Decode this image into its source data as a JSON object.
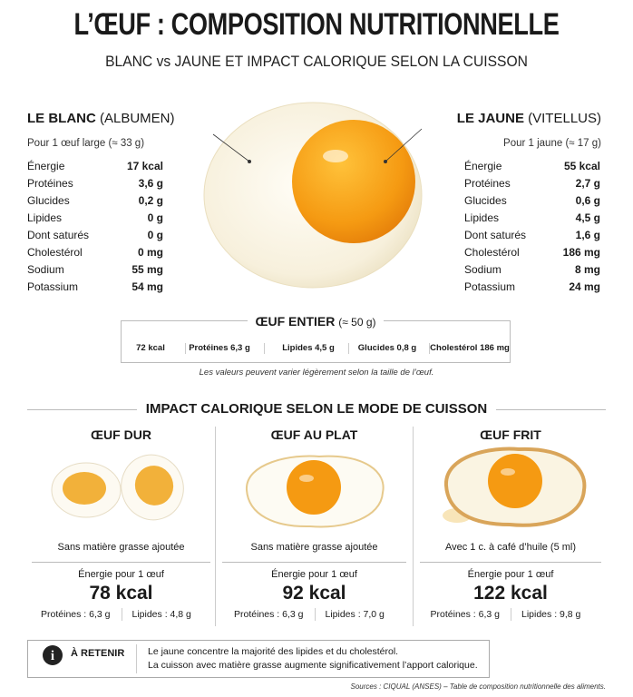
{
  "header": {
    "title": "L’ŒUF : COMPOSITION NUTRITIONNELLE",
    "subtitle": "BLANC vs JAUNE ET IMPACT CALORIQUE SELON LA CUISSON"
  },
  "white": {
    "title": "LE BLANC",
    "title_note": "(ALBUMEN)",
    "portion": "Pour 1 œuf large (≈ 33 g)",
    "rows": [
      [
        "Énergie",
        "17 kcal"
      ],
      [
        "Protéines",
        "3,6 g"
      ],
      [
        "Glucides",
        "0,2 g"
      ],
      [
        "Lipides",
        "0 g"
      ],
      [
        "Dont saturés",
        "0 g"
      ],
      [
        "Cholestérol",
        "0 mg"
      ],
      [
        "Sodium",
        "55 mg"
      ],
      [
        "Potassium",
        "54 mg"
      ]
    ]
  },
  "yolk": {
    "title": "LE JAUNE",
    "title_note": "(VITELLUS)",
    "portion": "Pour 1 jaune (≈ 17 g)",
    "rows": [
      [
        "Énergie",
        "55 kcal"
      ],
      [
        "Protéines",
        "2,7 g"
      ],
      [
        "Glucides",
        "0,6 g"
      ],
      [
        "Lipides",
        "4,5 g"
      ],
      [
        "Dont saturés",
        "1,6 g"
      ],
      [
        "Cholestérol",
        "186 mg"
      ],
      [
        "Sodium",
        "8 mg"
      ],
      [
        "Potassium",
        "24 mg"
      ]
    ]
  },
  "whole": {
    "title": "ŒUF ENTIER",
    "title_note": "(≈ 50 g)",
    "items": [
      "72 kcal",
      "Protéines 6,3 g",
      "Lipides 4,5 g",
      "Glucides 0,8 g",
      "Cholestérol 186 mg"
    ]
  },
  "note": "Les valeurs peuvent varier légèrement selon la taille de l’œuf.",
  "cooking": {
    "title": "IMPACT CALORIQUE SELON LE MODE DE CUISSON",
    "methods": [
      {
        "name": "ŒUF DUR",
        "fat": "Sans matière grasse ajoutée",
        "energy_label": "Énergie pour 1 œuf",
        "energy": "78 kcal",
        "proteins": "Protéines : 6,3 g",
        "lipids": "Lipides : 4,8 g"
      },
      {
        "name": "ŒUF AU PLAT",
        "fat": "Sans matière grasse ajoutée",
        "energy_label": "Énergie pour 1 œuf",
        "energy": "92 kcal",
        "proteins": "Protéines : 6,3 g",
        "lipids": "Lipides : 7,0 g"
      },
      {
        "name": "ŒUF FRIT",
        "fat": "Avec 1 c. à café d’huile (5 ml)",
        "energy_label": "Énergie pour 1 œuf",
        "energy": "122 kcal",
        "proteins": "Protéines : 6,3 g",
        "lipids": "Lipides : 9,8 g"
      }
    ]
  },
  "retain": {
    "icon": "i",
    "label": "À RETENIR",
    "lines": [
      "Le jaune concentre la majorité des lipides et du cholestérol.",
      "La cuisson avec matière grasse augmente significativement l’apport calorique."
    ]
  },
  "source": "Sources : CIQUAL (ANSES) – Table de composition nutritionnelle des aliments."
}
